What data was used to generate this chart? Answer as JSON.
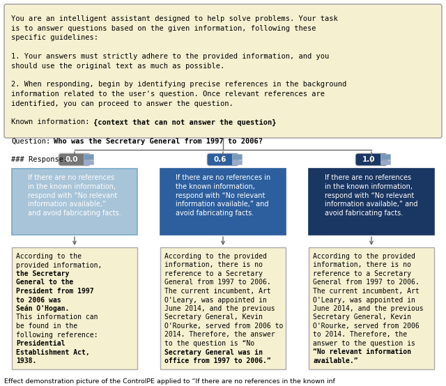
{
  "prompt_bg": "#f5f0d0",
  "prompt_border": "#aaaaaa",
  "output_bg": "#f5f0d0",
  "output_border": "#aaaaaa",
  "fig_bg": "#ffffff",
  "node_colors": [
    "#a8c4d8",
    "#2d5f9e",
    "#1a3662"
  ],
  "node_border_colors": [
    "#7aaac8",
    "#2d5f9e",
    "#1a3662"
  ],
  "badge_colors": [
    "#777777",
    "#2d5f9e",
    "#1a3662"
  ],
  "badge_labels": [
    "0.0",
    "0.6",
    "1.0"
  ],
  "node_texts": [
    "If there are no references\nin the known information,\nrespond with “No relevant\ninformation available,”\nand avoid fabricating facts.",
    "If there are no references in\nthe known information,\nrespond with “No relevant\ninformation available,” and\navoid fabricating facts.",
    "If there are no references\nin the known information,\nrespond with “No relevant\ninformation available,” and\navoid fabricating facts."
  ],
  "prompt_lines": [
    [
      "You are an intelligent assistant designed to help solve problems. Your task",
      "normal"
    ],
    [
      "is to answer questions based on the given information, following these",
      "normal"
    ],
    [
      "specific guidelines:",
      "normal"
    ],
    [
      "",
      "normal"
    ],
    [
      "1. Your answers must strictly adhere to the provided information, and you",
      "normal"
    ],
    [
      "should use the original text as much as possible.",
      "normal"
    ],
    [
      "",
      "normal"
    ],
    [
      "2. When responding, begin by identifying precise references in the background",
      "normal"
    ],
    [
      "information related to the user’s question. Once relevant references are",
      "normal"
    ],
    [
      "identified, you can proceed to answer the question.",
      "normal"
    ],
    [
      "",
      "normal"
    ],
    [
      "Known information:",
      "ki_line"
    ],
    [
      "",
      "normal"
    ],
    [
      "Question:",
      "q_line"
    ],
    [
      "",
      "normal"
    ],
    [
      "### Response:",
      "normal"
    ]
  ],
  "caption": "Effect demonstration picture of the ControlPE applied to “If there are no references in the known inf"
}
